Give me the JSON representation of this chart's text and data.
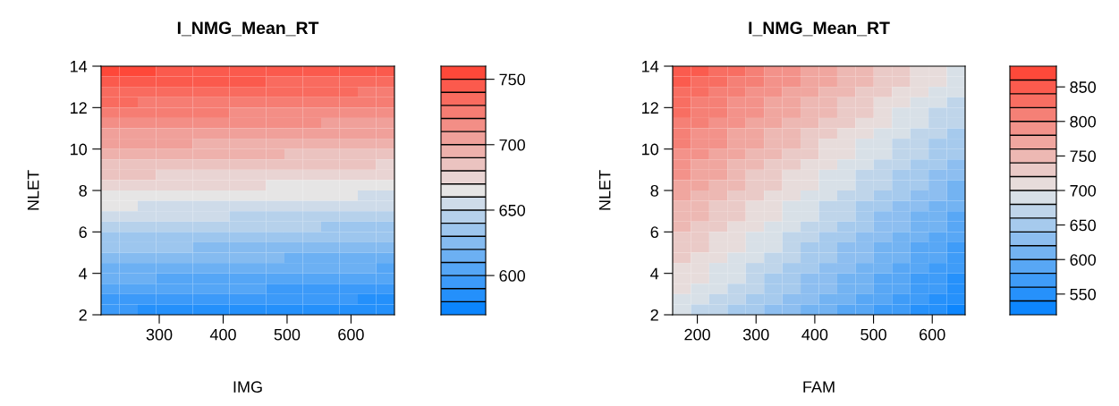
{
  "chart_data": [
    {
      "type": "heatmap",
      "title": "I_NMG_Mean_RT",
      "xlabel": "IMG",
      "ylabel": "NLET",
      "x": [
        223.3,
        252.0,
        280.7,
        309.4,
        338.1,
        366.8,
        395.5,
        424.2,
        452.8,
        481.5,
        510.2,
        538.9,
        567.6,
        596.3,
        625.0,
        653.7
      ],
      "y": [
        13.75,
        13.25,
        12.75,
        12.25,
        11.75,
        11.25,
        10.75,
        10.25,
        9.75,
        9.25,
        8.75,
        8.25,
        7.75,
        7.25,
        6.75,
        6.25,
        5.75,
        5.25,
        4.75,
        4.25,
        3.75,
        3.25,
        2.75,
        2.25
      ],
      "cells": [
        [
          752,
          752,
          751,
          750,
          750,
          749,
          749,
          748,
          748,
          747,
          746,
          746,
          745,
          745,
          744,
          743
        ],
        [
          745,
          745,
          744,
          743,
          743,
          742,
          742,
          741,
          741,
          740,
          739,
          739,
          738,
          738,
          737,
          736
        ],
        [
          738,
          738,
          737,
          736,
          736,
          735,
          735,
          734,
          734,
          733,
          732,
          732,
          731,
          731,
          730,
          729
        ],
        [
          731,
          731,
          730,
          729,
          729,
          728,
          728,
          727,
          727,
          726,
          725,
          725,
          724,
          724,
          723,
          722
        ],
        [
          724,
          724,
          723,
          722,
          722,
          721,
          721,
          720,
          720,
          719,
          718,
          718,
          717,
          717,
          716,
          715
        ],
        [
          717,
          717,
          716,
          715,
          715,
          714,
          714,
          713,
          713,
          712,
          711,
          711,
          710,
          710,
          709,
          708
        ],
        [
          710,
          710,
          709,
          708,
          708,
          707,
          707,
          706,
          706,
          705,
          704,
          704,
          703,
          703,
          702,
          701
        ],
        [
          703,
          703,
          702,
          701,
          701,
          700,
          700,
          699,
          699,
          698,
          697,
          697,
          696,
          696,
          695,
          694
        ],
        [
          696,
          696,
          695,
          694,
          694,
          693,
          693,
          692,
          692,
          691,
          690,
          690,
          689,
          689,
          688,
          687
        ],
        [
          689,
          689,
          688,
          687,
          687,
          686,
          686,
          685,
          685,
          684,
          683,
          683,
          682,
          682,
          681,
          680
        ],
        [
          682,
          682,
          681,
          680,
          680,
          679,
          679,
          678,
          678,
          677,
          676,
          676,
          675,
          675,
          674,
          673
        ],
        [
          675,
          675,
          674,
          673,
          673,
          672,
          672,
          671,
          671,
          670,
          669,
          669,
          668,
          668,
          667,
          666
        ],
        [
          668,
          668,
          667,
          666,
          666,
          665,
          665,
          664,
          664,
          663,
          662,
          662,
          661,
          661,
          660,
          659
        ],
        [
          661,
          661,
          660,
          659,
          659,
          658,
          658,
          657,
          657,
          656,
          655,
          655,
          654,
          654,
          653,
          652
        ],
        [
          654,
          654,
          653,
          652,
          652,
          651,
          651,
          650,
          650,
          649,
          648,
          648,
          647,
          647,
          646,
          645
        ],
        [
          647,
          647,
          646,
          645,
          645,
          644,
          644,
          643,
          643,
          642,
          641,
          641,
          640,
          640,
          639,
          638
        ],
        [
          640,
          640,
          639,
          638,
          638,
          637,
          637,
          636,
          636,
          635,
          634,
          634,
          633,
          633,
          632,
          631
        ],
        [
          633,
          633,
          632,
          631,
          631,
          630,
          630,
          629,
          629,
          628,
          627,
          627,
          626,
          626,
          625,
          624
        ],
        [
          626,
          626,
          625,
          624,
          624,
          623,
          623,
          622,
          622,
          621,
          620,
          620,
          619,
          619,
          618,
          617
        ],
        [
          619,
          619,
          618,
          617,
          617,
          616,
          616,
          615,
          615,
          614,
          613,
          613,
          612,
          612,
          611,
          610
        ],
        [
          612,
          612,
          611,
          610,
          610,
          609,
          609,
          608,
          608,
          607,
          606,
          606,
          605,
          605,
          604,
          603
        ],
        [
          605,
          605,
          604,
          603,
          603,
          602,
          602,
          601,
          601,
          600,
          599,
          599,
          598,
          598,
          597,
          596
        ],
        [
          598,
          598,
          597,
          596,
          596,
          595,
          595,
          594,
          594,
          593,
          592,
          592,
          591,
          591,
          590,
          589
        ],
        [
          591,
          591,
          590,
          589,
          589,
          588,
          588,
          587,
          587,
          586,
          585,
          585,
          584,
          584,
          583,
          582
        ]
      ],
      "xlim": [
        209,
        668
      ],
      "ylim": [
        2,
        14
      ],
      "xticks": [
        300,
        400,
        500,
        600
      ],
      "yticks": [
        2,
        4,
        6,
        8,
        10,
        12,
        14
      ],
      "colors": [
        "#0080ff",
        "#e6e6e6",
        "#ff4030"
      ],
      "clim": [
        570,
        760
      ],
      "cticks": [
        {
          "value": 580,
          "label": null
        },
        {
          "value": 590,
          "label": null
        },
        {
          "value": 600,
          "label": null
        },
        600,
        {
          "value": 610,
          "label": null
        },
        {
          "value": 620,
          "label": null
        },
        {
          "value": 630,
          "label": null
        },
        {
          "value": 640,
          "label": null
        },
        {
          "value": 650,
          "label": null
        },
        650,
        {
          "value": 660,
          "label": null
        },
        {
          "value": 670,
          "label": null
        },
        {
          "value": 680,
          "label": null
        },
        {
          "value": 690,
          "label": null
        },
        {
          "value": 700,
          "label": null
        },
        700,
        {
          "value": 710,
          "label": null
        },
        {
          "value": 720,
          "label": null
        },
        {
          "value": 730,
          "label": null
        },
        {
          "value": 740,
          "label": null
        },
        {
          "value": 750,
          "label": null
        },
        750
      ]
    },
    {
      "type": "heatmap",
      "title": "I_NMG_Mean_RT",
      "xlabel": "FAM",
      "ylabel": "NLET",
      "x": [
        173.6,
        204.7,
        235.8,
        266.9,
        298.1,
        329.2,
        360.3,
        391.4,
        422.6,
        453.7,
        484.8,
        515.9,
        547.1,
        578.2,
        609.3,
        640.4
      ],
      "y": [
        13.75,
        13.25,
        12.75,
        12.25,
        11.75,
        11.25,
        10.75,
        10.25,
        9.75,
        9.25,
        8.75,
        8.25,
        7.75,
        7.25,
        6.75,
        6.25,
        5.75,
        5.25,
        4.75,
        4.25,
        3.75,
        3.25,
        2.75,
        2.25
      ],
      "cells": [
        [
          851,
          841,
          831,
          821,
          810,
          800,
          790,
          779,
          769,
          759,
          749,
          738,
          728,
          718,
          708,
          697
        ],
        [
          844,
          834,
          824,
          814,
          803,
          793,
          783,
          772,
          762,
          752,
          742,
          731,
          721,
          711,
          701,
          690
        ],
        [
          837,
          827,
          817,
          807,
          796,
          786,
          776,
          765,
          755,
          745,
          735,
          724,
          714,
          704,
          694,
          683
        ],
        [
          830,
          820,
          810,
          800,
          789,
          779,
          769,
          758,
          748,
          738,
          728,
          717,
          707,
          697,
          687,
          676
        ],
        [
          823,
          813,
          803,
          793,
          782,
          772,
          762,
          751,
          741,
          731,
          721,
          710,
          700,
          690,
          680,
          669
        ],
        [
          816,
          806,
          796,
          786,
          775,
          765,
          755,
          744,
          734,
          724,
          714,
          703,
          693,
          683,
          673,
          662
        ],
        [
          809,
          799,
          789,
          779,
          768,
          758,
          748,
          737,
          727,
          717,
          707,
          696,
          686,
          676,
          666,
          655
        ],
        [
          802,
          792,
          782,
          772,
          761,
          751,
          741,
          730,
          720,
          710,
          700,
          689,
          679,
          669,
          659,
          648
        ],
        [
          795,
          785,
          775,
          765,
          754,
          744,
          734,
          723,
          713,
          703,
          693,
          682,
          672,
          662,
          652,
          641
        ],
        [
          788,
          778,
          768,
          758,
          747,
          737,
          727,
          716,
          706,
          696,
          686,
          675,
          665,
          655,
          645,
          634
        ],
        [
          781,
          771,
          761,
          751,
          740,
          730,
          720,
          709,
          699,
          689,
          679,
          668,
          658,
          648,
          638,
          627
        ],
        [
          774,
          764,
          754,
          744,
          733,
          723,
          713,
          702,
          692,
          682,
          672,
          661,
          651,
          641,
          631,
          620
        ],
        [
          767,
          757,
          747,
          737,
          726,
          716,
          706,
          695,
          685,
          675,
          665,
          654,
          644,
          634,
          624,
          613
        ],
        [
          760,
          750,
          740,
          730,
          719,
          709,
          699,
          688,
          678,
          668,
          658,
          647,
          637,
          627,
          617,
          606
        ],
        [
          753,
          743,
          733,
          723,
          712,
          702,
          692,
          681,
          671,
          661,
          651,
          640,
          630,
          620,
          610,
          599
        ],
        [
          746,
          736,
          726,
          716,
          705,
          695,
          685,
          674,
          664,
          654,
          644,
          633,
          623,
          613,
          603,
          592
        ],
        [
          739,
          729,
          719,
          709,
          698,
          688,
          678,
          667,
          657,
          647,
          637,
          626,
          616,
          606,
          596,
          585
        ],
        [
          732,
          722,
          712,
          702,
          691,
          681,
          671,
          660,
          650,
          640,
          630,
          619,
          609,
          599,
          589,
          578
        ],
        [
          725,
          715,
          705,
          695,
          684,
          674,
          664,
          653,
          643,
          633,
          623,
          612,
          602,
          592,
          582,
          571
        ],
        [
          718,
          708,
          698,
          688,
          677,
          667,
          657,
          646,
          636,
          626,
          616,
          605,
          595,
          585,
          575,
          564
        ],
        [
          711,
          701,
          691,
          681,
          670,
          660,
          650,
          639,
          629,
          619,
          609,
          598,
          588,
          578,
          568,
          557
        ],
        [
          704,
          694,
          684,
          674,
          663,
          653,
          643,
          632,
          622,
          612,
          602,
          591,
          581,
          571,
          561,
          550
        ],
        [
          697,
          687,
          677,
          667,
          656,
          646,
          636,
          625,
          615,
          605,
          595,
          584,
          574,
          564,
          554,
          543
        ],
        [
          690,
          680,
          670,
          660,
          649,
          639,
          629,
          618,
          608,
          598,
          588,
          577,
          567,
          557,
          547,
          536
        ]
      ],
      "xlim": [
        158,
        656
      ],
      "ylim": [
        2,
        14
      ],
      "xticks": [
        200,
        300,
        400,
        500,
        600
      ],
      "yticks": [
        2,
        4,
        6,
        8,
        10,
        12,
        14
      ],
      "colors": [
        "#0080ff",
        "#e6e6e6",
        "#ff4030"
      ],
      "clim": [
        520,
        880
      ],
      "cticks": [
        {
          "value": 540,
          "label": null
        },
        550,
        {
          "value": 560,
          "label": null
        },
        {
          "value": 580,
          "label": null
        },
        600,
        {
          "value": 600,
          "label": null
        },
        {
          "value": 620,
          "label": null
        },
        {
          "value": 640,
          "label": null
        },
        650,
        {
          "value": 660,
          "label": null
        },
        {
          "value": 680,
          "label": null
        },
        700,
        {
          "value": 700,
          "label": null
        },
        {
          "value": 720,
          "label": null
        },
        {
          "value": 740,
          "label": null
        },
        750,
        {
          "value": 760,
          "label": null
        },
        {
          "value": 780,
          "label": null
        },
        800,
        {
          "value": 800,
          "label": null
        },
        {
          "value": 820,
          "label": null
        },
        {
          "value": 840,
          "label": null
        },
        850,
        {
          "value": 860,
          "label": null
        }
      ]
    }
  ]
}
